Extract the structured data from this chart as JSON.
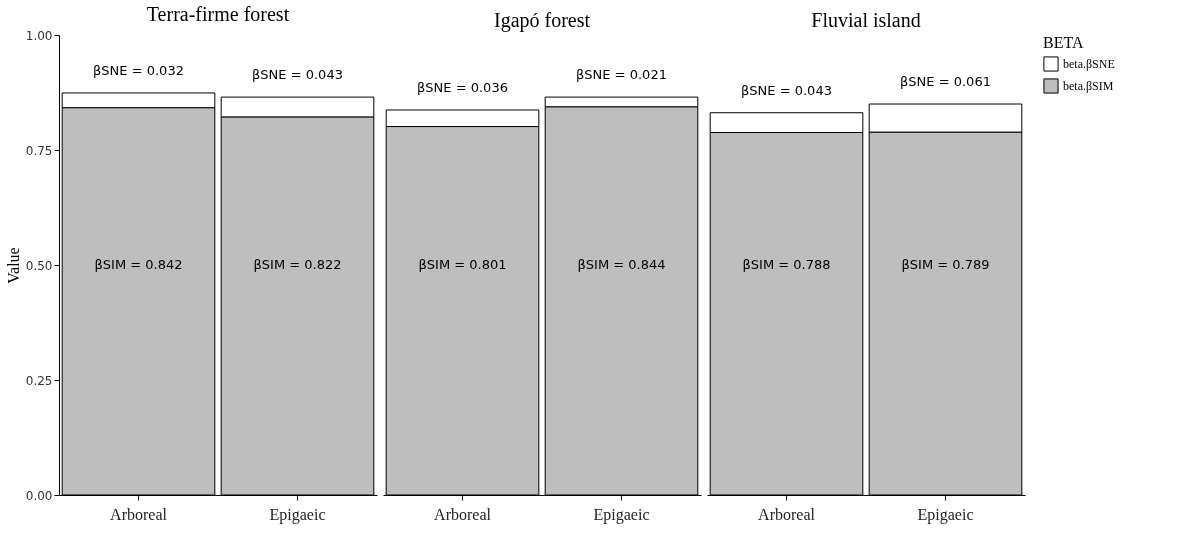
{
  "chart_data": [
    {
      "type": "bar",
      "title": "Terra-firme forest",
      "ylabel": "Value",
      "categories": [
        "Arboreal",
        "Epigaeic"
      ],
      "stacked": true,
      "ylim": [
        0,
        1
      ],
      "yticks": [
        {
          "value": 0,
          "label": "0.00"
        },
        {
          "value": 0.25,
          "label": "0.25"
        },
        {
          "value": 0.5,
          "label": "0.50"
        },
        {
          "value": 0.75,
          "label": "0.75"
        },
        {
          "value": 1,
          "label": "1.00"
        }
      ],
      "legend": false,
      "series": [
        {
          "color": "#bebebe",
          "values": [
            0.842,
            0.822
          ],
          "value_labels": [
            "βSIM = 0.842",
            "βSIM = 0.822"
          ]
        },
        {
          "color": "#ffffff",
          "values": [
            0.032,
            0.043
          ],
          "value_labels": [
            "βSNE = 0.032",
            "βSNE = 0.043"
          ]
        }
      ]
    },
    {
      "type": "bar",
      "title": "Igapó forest",
      "categories": [
        "Arboreal",
        "Epigaeic"
      ],
      "stacked": true,
      "ylim": [
        0,
        1
      ],
      "tick_labels": "x",
      "legend": false,
      "series": [
        {
          "color": "#bebebe",
          "values": [
            0.801,
            0.844
          ],
          "value_labels": [
            "βSIM = 0.801",
            "βSIM = 0.844"
          ]
        },
        {
          "color": "#ffffff",
          "values": [
            0.036,
            0.021
          ],
          "value_labels": [
            "βSNE = 0.036",
            "βSNE = 0.021"
          ]
        }
      ]
    },
    {
      "type": "bar",
      "title": "Fluvial island",
      "categories": [
        "Arboreal",
        "Epigaeic"
      ],
      "stacked": true,
      "ylim": [
        0,
        1
      ],
      "tick_labels": "x",
      "legend": "right",
      "legend_title": "BETA",
      "series": [
        {
          "name": "beta.βSIM",
          "color": "#bebebe",
          "values": [
            0.788,
            0.789
          ],
          "value_labels": [
            "βSIM = 0.788",
            "βSIM = 0.789"
          ]
        },
        {
          "name": "beta.βSNE",
          "color": "#ffffff",
          "values": [
            0.043,
            0.061
          ],
          "value_labels": [
            "βSNE = 0.043",
            "βSNE = 0.061"
          ]
        }
      ]
    }
  ]
}
